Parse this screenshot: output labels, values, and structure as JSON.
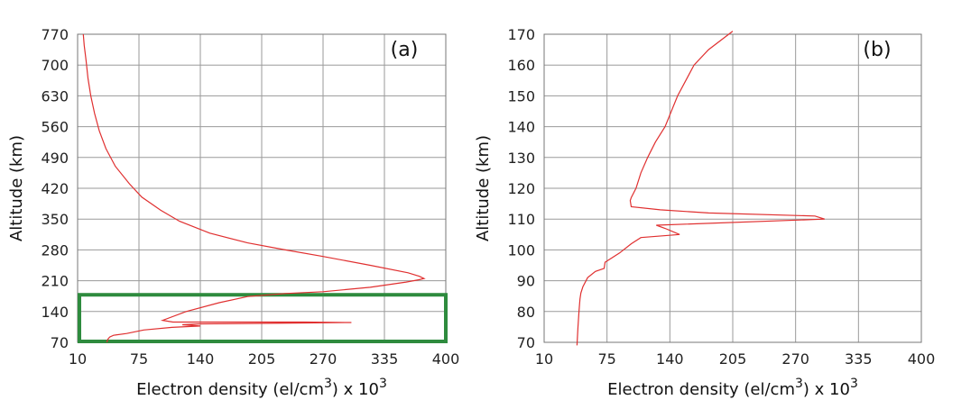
{
  "chart_data": [
    {
      "type": "line",
      "panel_label": "(a)",
      "xlabel": {
        "main": "Electron density (el/cm",
        "sup1": "3",
        "mid": ") x 10",
        "sup2": "3"
      },
      "ylabel": "Altitude (km)",
      "xlim": [
        10,
        400
      ],
      "ylim": [
        70,
        770
      ],
      "xticks": [
        10,
        75,
        140,
        205,
        270,
        335,
        400
      ],
      "yticks": [
        70,
        140,
        210,
        280,
        350,
        420,
        490,
        560,
        630,
        700,
        770
      ],
      "grid": true,
      "highlight_box": {
        "x": [
          10,
          400
        ],
        "y": [
          70,
          178
        ],
        "color": "#2e8b3e"
      },
      "series": [
        {
          "color": "#e03030",
          "points": [
            [
              41,
              70
            ],
            [
              42,
              77
            ],
            [
              44,
              82
            ],
            [
              48,
              86
            ],
            [
              62,
              90
            ],
            [
              80,
              98
            ],
            [
              110,
              104
            ],
            [
              140,
              107
            ],
            [
              121,
              110
            ],
            [
              140,
              112
            ],
            [
              250,
              114
            ],
            [
              300,
              115
            ],
            [
              250,
              116
            ],
            [
              140,
              116
            ],
            [
              111,
              116
            ],
            [
              100,
              120
            ],
            [
              125,
              140
            ],
            [
              160,
              160
            ],
            [
              190,
              174
            ],
            [
              230,
              181
            ],
            [
              270,
              185
            ],
            [
              320,
              195
            ],
            [
              358,
              207
            ],
            [
              371,
              212
            ],
            [
              377,
              215
            ],
            [
              372,
              220
            ],
            [
              360,
              228
            ],
            [
              320,
              245
            ],
            [
              270,
              265
            ],
            [
              230,
              280
            ],
            [
              190,
              296
            ],
            [
              150,
              318
            ],
            [
              118,
              345
            ],
            [
              98,
              370
            ],
            [
              78,
              400
            ],
            [
              65,
              430
            ],
            [
              50,
              470
            ],
            [
              40,
              510
            ],
            [
              33,
              550
            ],
            [
              28,
              590
            ],
            [
              24,
              630
            ],
            [
              21,
              670
            ],
            [
              19,
              710
            ],
            [
              17,
              745
            ],
            [
              16,
              770
            ]
          ]
        }
      ]
    },
    {
      "type": "line",
      "panel_label": "(b)",
      "xlabel": {
        "main": "Electron density (el/cm",
        "sup1": "3",
        "mid": ") x 10",
        "sup2": "3"
      },
      "ylabel": "Altitude (km)",
      "xlim": [
        10,
        400
      ],
      "ylim": [
        70,
        170
      ],
      "xticks": [
        10,
        75,
        140,
        205,
        270,
        335,
        400
      ],
      "yticks": [
        70,
        80,
        90,
        100,
        110,
        120,
        130,
        140,
        150,
        160,
        170
      ],
      "grid": true,
      "series": [
        {
          "color": "#e03030",
          "points": [
            [
              44,
              69
            ],
            [
              45,
              75
            ],
            [
              46,
              80
            ],
            [
              47,
              84
            ],
            [
              48,
              86
            ],
            [
              50,
              88
            ],
            [
              55,
              91
            ],
            [
              63,
              93
            ],
            [
              72,
              94
            ],
            [
              73,
              96
            ],
            [
              88,
              99
            ],
            [
              100,
              102
            ],
            [
              110,
              104
            ],
            [
              150,
              105
            ],
            [
              135,
              107
            ],
            [
              126,
              108
            ],
            [
              300,
              110
            ],
            [
              290,
              111
            ],
            [
              180,
              112
            ],
            [
              130,
              113
            ],
            [
              100,
              114
            ],
            [
              99,
              116
            ],
            [
              100,
              117
            ],
            [
              105,
              120
            ],
            [
              110,
              125
            ],
            [
              117,
              130
            ],
            [
              125,
              135
            ],
            [
              135,
              140
            ],
            [
              148,
              150
            ],
            [
              165,
              160
            ],
            [
              180,
              165
            ],
            [
              205,
              171
            ]
          ]
        }
      ]
    }
  ]
}
